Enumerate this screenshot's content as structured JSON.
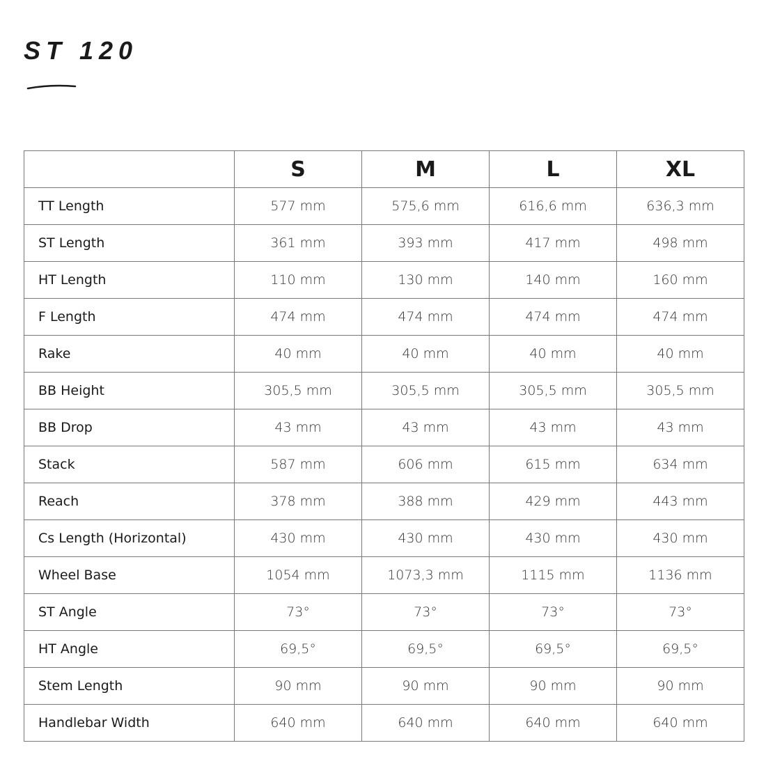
{
  "title": "ST 120",
  "table": {
    "sizes": [
      "S",
      "M",
      "L",
      "XL"
    ],
    "rows": [
      {
        "label": "TT Length",
        "values": [
          "577 mm",
          "575,6 mm",
          "616,6 mm",
          "636,3 mm"
        ]
      },
      {
        "label": "ST Length",
        "values": [
          "361 mm",
          "393 mm",
          "417 mm",
          "498 mm"
        ]
      },
      {
        "label": "HT Length",
        "values": [
          "110 mm",
          "130 mm",
          "140 mm",
          "160 mm"
        ]
      },
      {
        "label": "F Length",
        "values": [
          "474 mm",
          "474 mm",
          "474 mm",
          "474 mm"
        ]
      },
      {
        "label": "Rake",
        "values": [
          "40 mm",
          "40 mm",
          "40 mm",
          "40 mm"
        ]
      },
      {
        "label": "BB Height",
        "values": [
          "305,5 mm",
          "305,5 mm",
          "305,5 mm",
          "305,5 mm"
        ]
      },
      {
        "label": "BB Drop",
        "values": [
          "43 mm",
          "43 mm",
          "43 mm",
          "43 mm"
        ]
      },
      {
        "label": "Stack",
        "values": [
          "587 mm",
          "606 mm",
          "615 mm",
          "634 mm"
        ]
      },
      {
        "label": "Reach",
        "values": [
          "378 mm",
          "388 mm",
          "429 mm",
          "443 mm"
        ]
      },
      {
        "label": "Cs Length (Horizontal)",
        "values": [
          "430 mm",
          "430 mm",
          "430 mm",
          "430 mm"
        ]
      },
      {
        "label": "Wheel Base",
        "values": [
          "1054 mm",
          "1073,3 mm",
          "1115 mm",
          "1136 mm"
        ]
      },
      {
        "label": "ST Angle",
        "values": [
          "73°",
          "73°",
          "73°",
          "73°"
        ]
      },
      {
        "label": "HT Angle",
        "values": [
          "69,5°",
          "69,5°",
          "69,5°",
          "69,5°"
        ]
      },
      {
        "label": "Stem Length",
        "values": [
          "90 mm",
          "90 mm",
          "90 mm",
          "90 mm"
        ]
      },
      {
        "label": "Handlebar Width",
        "values": [
          "640 mm",
          "640 mm",
          "640 mm",
          "640 mm"
        ]
      }
    ]
  }
}
